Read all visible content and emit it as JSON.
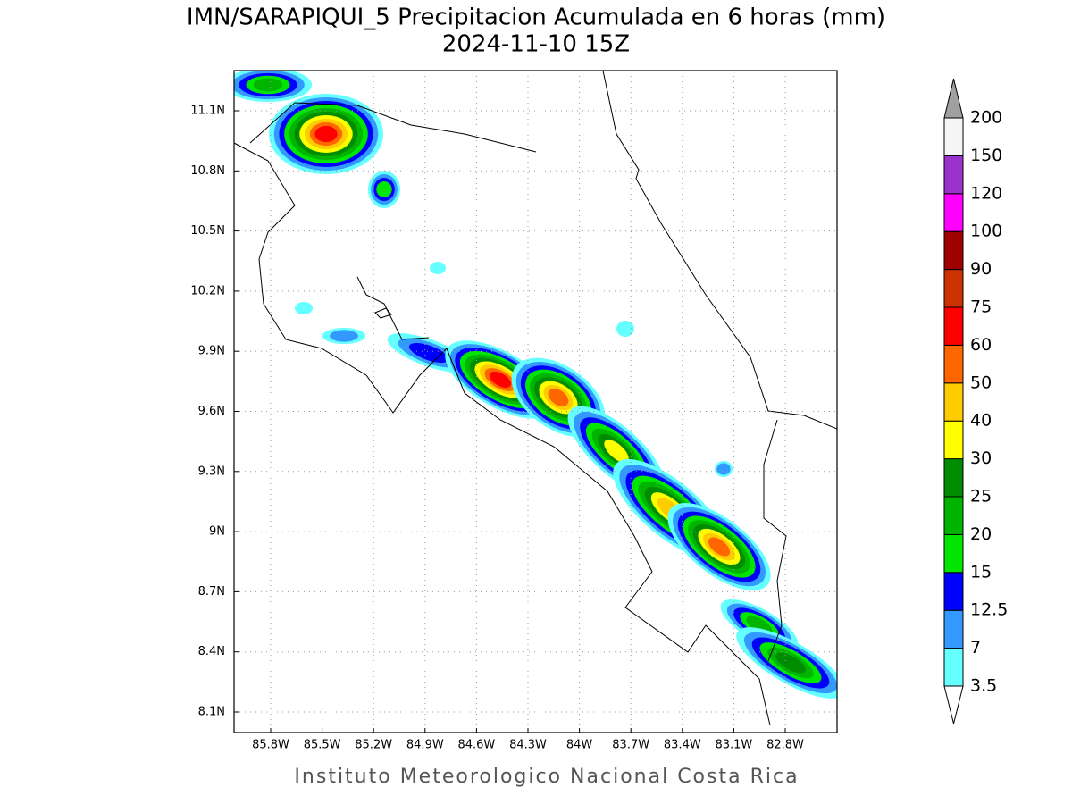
{
  "map": {
    "title": "IMN/SARAPIQUI_5 Precipitacion Acumulada en 6 horas (mm)",
    "subtitle": "2024-11-10 15Z",
    "lon_labels": [
      "85.8W",
      "85.5W",
      "85.2W",
      "84.9W",
      "84.6W",
      "84.3W",
      "84W",
      "83.7W",
      "83.4W",
      "83.1W",
      "82.8W"
    ],
    "lat_labels": [
      "11.1N",
      "10.8N",
      "10.5N",
      "10.2N",
      "9.9N",
      "9.6N",
      "9.3N",
      "9N",
      "8.7N",
      "8.4N",
      "8.1N"
    ],
    "footer": "Instituto Meteorologico Nacional Costa Rica"
  },
  "colorbar": {
    "levels": [
      3.5,
      7,
      12.5,
      15,
      20,
      25,
      30,
      40,
      50,
      60,
      75,
      90,
      100,
      120,
      150,
      200
    ],
    "colors": [
      "#ffffff",
      "#66ffff",
      "#3399ff",
      "#0000ff",
      "#00e600",
      "#00b400",
      "#008c00",
      "#ffff00",
      "#ffcc00",
      "#ff6600",
      "#ff0000",
      "#cc3300",
      "#a00000",
      "#ff00ff",
      "#9933cc",
      "#f5f5f5",
      "#a0a0a0"
    ]
  }
}
